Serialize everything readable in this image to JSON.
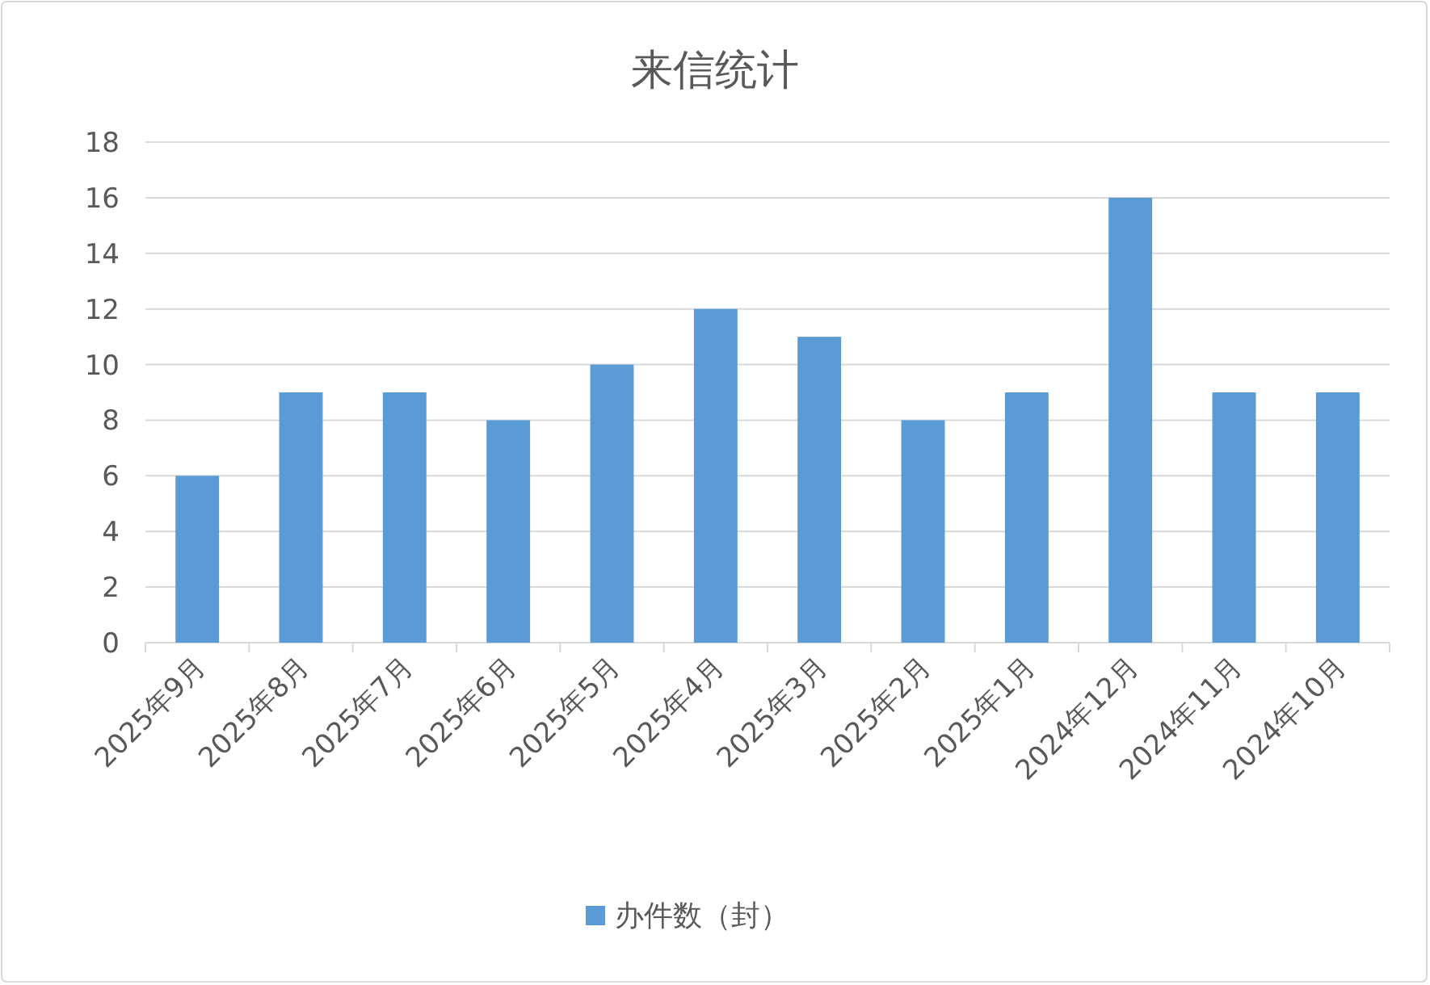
{
  "chart_data": {
    "type": "bar",
    "title": "来信统计",
    "categories": [
      "2025年9月",
      "2025年8月",
      "2025年7月",
      "2025年6月",
      "2025年5月",
      "2025年4月",
      "2025年3月",
      "2025年2月",
      "2025年1月",
      "2024年12月",
      "2024年11月",
      "2024年10月"
    ],
    "series": [
      {
        "name": "办件数（封）",
        "color": "#5b9bd5",
        "values": [
          6,
          9,
          9,
          8,
          10,
          12,
          11,
          8,
          9,
          16,
          9,
          9
        ]
      }
    ],
    "ylim": [
      0,
      18
    ],
    "yticks": [
      0,
      2,
      4,
      6,
      8,
      10,
      12,
      14,
      16,
      18
    ],
    "grid": "y",
    "legend": "bottom"
  }
}
